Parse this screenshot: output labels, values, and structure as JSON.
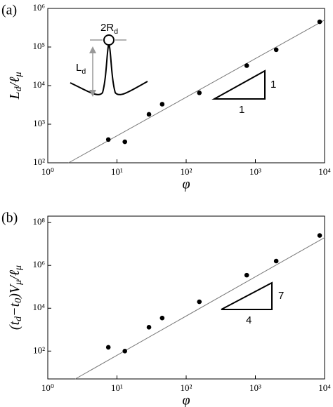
{
  "chart_data": [
    {
      "type": "scatter",
      "panel": "(a)",
      "xlabel": "φ",
      "ylabel": [
        "L",
        "d",
        "/ℓ",
        "μ"
      ],
      "x": [
        7.5,
        13,
        29,
        45,
        155,
        750,
        2000,
        8500
      ],
      "values": [
        400,
        350,
        1800,
        3300,
        6500,
        33000,
        85000,
        450000
      ],
      "color": "#000000",
      "log": true,
      "xlim": [
        1,
        10000
      ],
      "ylim": [
        100,
        1000000
      ],
      "xticks": [
        {
          "value": 1,
          "label": "10⁰"
        },
        {
          "value": 10,
          "label": "10¹"
        },
        {
          "value": 100,
          "label": "10²"
        },
        {
          "value": 1000,
          "label": "10³"
        },
        {
          "value": 10000,
          "label": "10⁴"
        }
      ],
      "yticks": [
        {
          "value": 100,
          "label": "10²"
        },
        {
          "value": 1000,
          "label": "10³"
        },
        {
          "value": 10000,
          "label": "10⁴"
        },
        {
          "value": 100000,
          "label": "10⁵"
        },
        {
          "value": 1000000,
          "label": "10⁶"
        }
      ],
      "fit": {
        "x": [
          2,
          10000
        ],
        "y": [
          100,
          500000
        ]
      },
      "slope_labels": [
        "1",
        "1"
      ],
      "annotations": [
        [
          "2R",
          "d"
        ],
        [
          "L",
          "d"
        ]
      ]
    },
    {
      "type": "scatter",
      "panel": "(b)",
      "xlabel": "φ",
      "ylabel": [
        "(t",
        "d",
        "−t",
        "0",
        ")V",
        "μ",
        "/ℓ",
        "μ"
      ],
      "x": [
        7.5,
        13,
        29,
        45,
        155,
        750,
        2000,
        8500
      ],
      "values": [
        150,
        100,
        1300,
        3500,
        20000,
        350000,
        1600000,
        25000000
      ],
      "color": "#000000",
      "log": true,
      "xlim": [
        1,
        10000
      ],
      "ylim": [
        5,
        200000000
      ],
      "xticks": [
        {
          "value": 1,
          "label": "10⁰"
        },
        {
          "value": 10,
          "label": "10¹"
        },
        {
          "value": 100,
          "label": "10²"
        },
        {
          "value": 1000,
          "label": "10³"
        },
        {
          "value": 10000,
          "label": "10⁴"
        }
      ],
      "yticks": [
        {
          "value": 100,
          "label": "10²"
        },
        {
          "value": 10000,
          "label": "10⁴"
        },
        {
          "value": 1000000,
          "label": "10⁶"
        },
        {
          "value": 100000000,
          "label": "10⁸"
        }
      ],
      "fit": {
        "x": [
          2.5,
          10000
        ],
        "y": [
          5,
          20000000
        ]
      },
      "slope_labels": [
        "7",
        "4"
      ],
      "annotations": []
    }
  ]
}
